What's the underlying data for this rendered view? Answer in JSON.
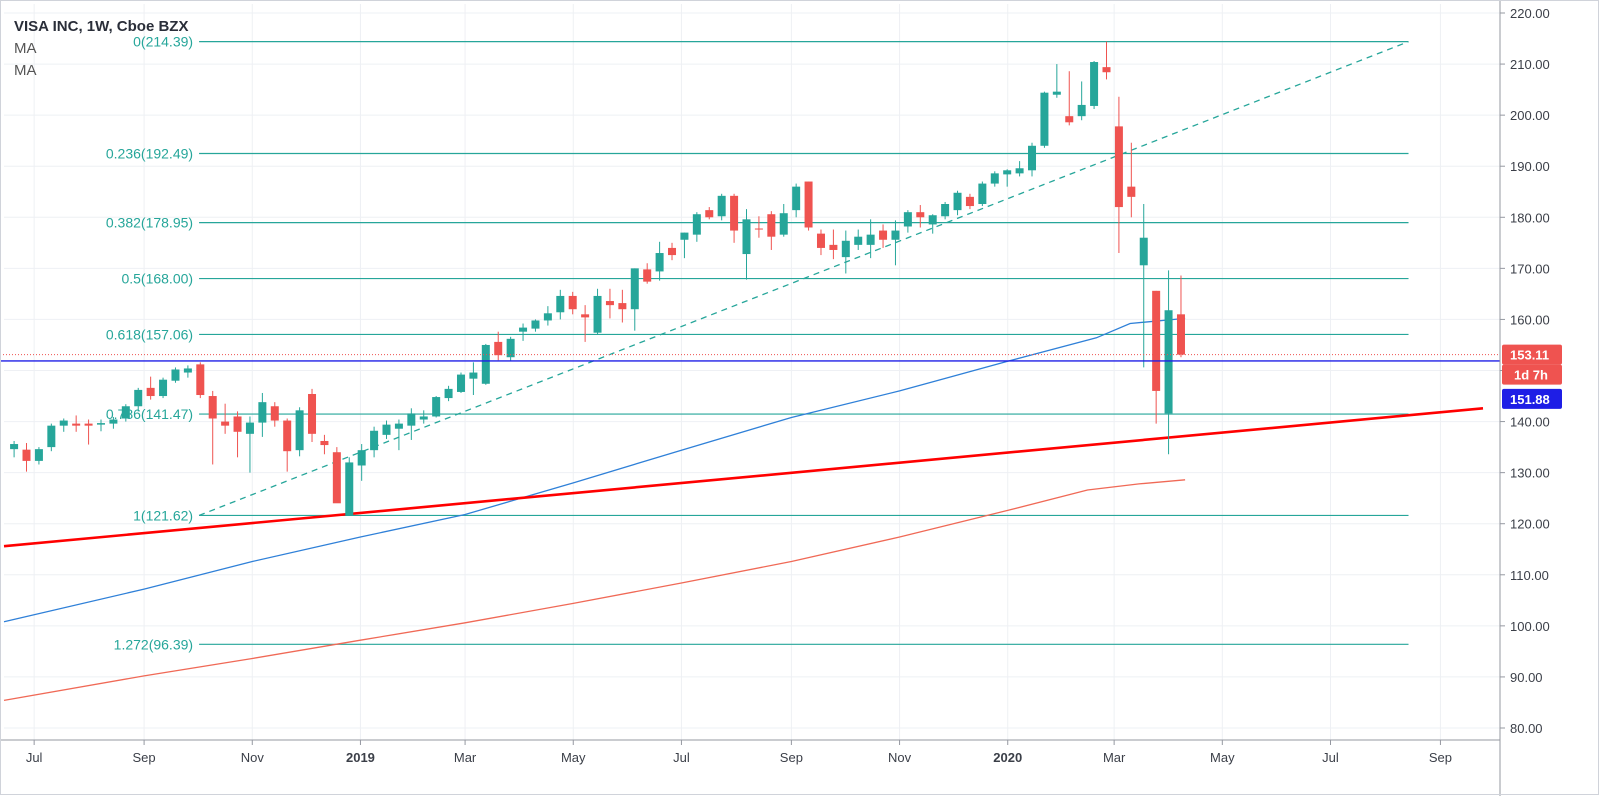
{
  "legend": {
    "title": "VISA INC, 1W, Cboe BZX",
    "ma1": "MA",
    "ma2": "MA"
  },
  "colors": {
    "up": "#26a69a",
    "down": "#ef5350",
    "fib": "#26a69a",
    "ma_fast": "#2f80d8",
    "ma_slow": "#f06956",
    "trendline": "#ff0000",
    "price_line": "#1e1ee6",
    "current_price": "#ef5350",
    "grid": "#eef0f4"
  },
  "chart_data": {
    "type": "candlestick",
    "title": "VISA INC, 1W, Cboe BZX",
    "ylim": [
      78,
      222
    ],
    "xlim": [
      "2018-06-18",
      "2020-09-25"
    ],
    "grid": true,
    "y_ticks": [
      "80.00",
      "90.00",
      "100.00",
      "110.00",
      "120.00",
      "130.00",
      "140.00",
      "150.00",
      "160.00",
      "170.00",
      "180.00",
      "190.00",
      "200.00",
      "210.00",
      "220.00"
    ],
    "x_ticks": [
      {
        "label": "Jul",
        "date": "2018-07-01",
        "bold": false
      },
      {
        "label": "Sep",
        "date": "2018-09-01",
        "bold": false
      },
      {
        "label": "Nov",
        "date": "2018-11-01",
        "bold": false
      },
      {
        "label": "2019",
        "date": "2019-01-01",
        "bold": true
      },
      {
        "label": "Mar",
        "date": "2019-03-01",
        "bold": false
      },
      {
        "label": "May",
        "date": "2019-05-01",
        "bold": false
      },
      {
        "label": "Jul",
        "date": "2019-07-01",
        "bold": false
      },
      {
        "label": "Sep",
        "date": "2019-09-01",
        "bold": false
      },
      {
        "label": "Nov",
        "date": "2019-11-01",
        "bold": false
      },
      {
        "label": "2020",
        "date": "2020-01-01",
        "bold": true
      },
      {
        "label": "Mar",
        "date": "2020-03-01",
        "bold": false
      },
      {
        "label": "May",
        "date": "2020-05-01",
        "bold": false
      },
      {
        "label": "Jul",
        "date": "2020-07-01",
        "bold": false
      },
      {
        "label": "Sep",
        "date": "2020-09-01",
        "bold": false
      }
    ],
    "candles": [
      {
        "d": "2018-06-18",
        "o": 134.6,
        "h": 136.2,
        "l": 133.0,
        "c": 135.6
      },
      {
        "d": "2018-06-25",
        "o": 134.5,
        "h": 135.8,
        "l": 130.2,
        "c": 132.3
      },
      {
        "d": "2018-07-02",
        "o": 132.3,
        "h": 135.0,
        "l": 131.6,
        "c": 134.6
      },
      {
        "d": "2018-07-09",
        "o": 135.0,
        "h": 139.6,
        "l": 134.2,
        "c": 139.2
      },
      {
        "d": "2018-07-16",
        "o": 139.2,
        "h": 140.6,
        "l": 138.0,
        "c": 140.2
      },
      {
        "d": "2018-07-23",
        "o": 139.6,
        "h": 141.2,
        "l": 138.0,
        "c": 139.2
      },
      {
        "d": "2018-07-30",
        "o": 139.6,
        "h": 140.4,
        "l": 135.5,
        "c": 139.2
      },
      {
        "d": "2018-08-06",
        "o": 139.4,
        "h": 140.4,
        "l": 138.1,
        "c": 139.7
      },
      {
        "d": "2018-08-13",
        "o": 139.6,
        "h": 140.9,
        "l": 138.6,
        "c": 140.4
      },
      {
        "d": "2018-08-20",
        "o": 140.6,
        "h": 143.4,
        "l": 140.0,
        "c": 143.0
      },
      {
        "d": "2018-08-27",
        "o": 143.0,
        "h": 146.6,
        "l": 142.0,
        "c": 146.2
      },
      {
        "d": "2018-09-03",
        "o": 146.6,
        "h": 148.8,
        "l": 144.3,
        "c": 145.0
      },
      {
        "d": "2018-09-10",
        "o": 145.0,
        "h": 148.6,
        "l": 144.6,
        "c": 148.2
      },
      {
        "d": "2018-09-17",
        "o": 148.0,
        "h": 150.6,
        "l": 147.6,
        "c": 150.2
      },
      {
        "d": "2018-09-24",
        "o": 149.6,
        "h": 151.0,
        "l": 148.6,
        "c": 150.4
      },
      {
        "d": "2018-10-01",
        "o": 151.2,
        "h": 151.6,
        "l": 144.6,
        "c": 145.2
      },
      {
        "d": "2018-10-08",
        "o": 145.0,
        "h": 146.0,
        "l": 131.6,
        "c": 140.6
      },
      {
        "d": "2018-10-15",
        "o": 140.0,
        "h": 143.5,
        "l": 137.6,
        "c": 139.2
      },
      {
        "d": "2018-10-22",
        "o": 141.0,
        "h": 142.0,
        "l": 133.0,
        "c": 138.0
      },
      {
        "d": "2018-10-29",
        "o": 137.6,
        "h": 141.0,
        "l": 130.0,
        "c": 139.8
      },
      {
        "d": "2018-11-05",
        "o": 139.8,
        "h": 145.6,
        "l": 137.0,
        "c": 143.8
      },
      {
        "d": "2018-11-12",
        "o": 143.0,
        "h": 143.8,
        "l": 139.0,
        "c": 140.2
      },
      {
        "d": "2018-11-19",
        "o": 140.2,
        "h": 140.6,
        "l": 130.2,
        "c": 134.2
      },
      {
        "d": "2018-11-26",
        "o": 134.4,
        "h": 142.8,
        "l": 133.2,
        "c": 142.2
      },
      {
        "d": "2018-12-03",
        "o": 145.4,
        "h": 146.4,
        "l": 136.0,
        "c": 137.6
      },
      {
        "d": "2018-12-10",
        "o": 136.2,
        "h": 137.4,
        "l": 133.6,
        "c": 135.4
      },
      {
        "d": "2018-12-17",
        "o": 134.0,
        "h": 135.0,
        "l": 125.0,
        "c": 124.0
      },
      {
        "d": "2018-12-24",
        "o": 121.6,
        "h": 133.0,
        "l": 121.6,
        "c": 132.0
      },
      {
        "d": "2018-12-31",
        "o": 131.4,
        "h": 135.6,
        "l": 128.4,
        "c": 134.4
      },
      {
        "d": "2019-01-07",
        "o": 134.4,
        "h": 139.0,
        "l": 133.0,
        "c": 138.2
      },
      {
        "d": "2019-01-14",
        "o": 137.4,
        "h": 140.2,
        "l": 136.6,
        "c": 139.4
      },
      {
        "d": "2019-01-21",
        "o": 138.6,
        "h": 140.4,
        "l": 134.4,
        "c": 139.6
      },
      {
        "d": "2019-01-28",
        "o": 139.2,
        "h": 142.6,
        "l": 136.4,
        "c": 141.6
      },
      {
        "d": "2019-02-04",
        "o": 140.4,
        "h": 142.2,
        "l": 139.6,
        "c": 141.0
      },
      {
        "d": "2019-02-11",
        "o": 141.0,
        "h": 145.0,
        "l": 140.8,
        "c": 144.8
      },
      {
        "d": "2019-02-18",
        "o": 144.6,
        "h": 147.0,
        "l": 144.0,
        "c": 146.4
      },
      {
        "d": "2019-02-25",
        "o": 145.8,
        "h": 149.6,
        "l": 145.6,
        "c": 149.2
      },
      {
        "d": "2019-03-04",
        "o": 148.4,
        "h": 151.6,
        "l": 145.2,
        "c": 149.6
      },
      {
        "d": "2019-03-11",
        "o": 147.4,
        "h": 155.2,
        "l": 147.2,
        "c": 155.0
      },
      {
        "d": "2019-03-18",
        "o": 155.6,
        "h": 157.6,
        "l": 152.0,
        "c": 153.0
      },
      {
        "d": "2019-03-25",
        "o": 152.6,
        "h": 156.6,
        "l": 151.8,
        "c": 156.2
      },
      {
        "d": "2019-04-01",
        "o": 157.6,
        "h": 159.2,
        "l": 155.8,
        "c": 158.4
      },
      {
        "d": "2019-04-08",
        "o": 158.2,
        "h": 160.0,
        "l": 157.6,
        "c": 159.8
      },
      {
        "d": "2019-04-15",
        "o": 159.8,
        "h": 162.6,
        "l": 158.8,
        "c": 161.2
      },
      {
        "d": "2019-04-22",
        "o": 161.4,
        "h": 165.8,
        "l": 160.0,
        "c": 164.6
      },
      {
        "d": "2019-04-29",
        "o": 164.6,
        "h": 165.4,
        "l": 161.0,
        "c": 162.0
      },
      {
        "d": "2019-05-06",
        "o": 161.0,
        "h": 162.8,
        "l": 155.6,
        "c": 160.4
      },
      {
        "d": "2019-05-13",
        "o": 157.4,
        "h": 166.0,
        "l": 157.0,
        "c": 164.6
      },
      {
        "d": "2019-05-20",
        "o": 163.6,
        "h": 166.0,
        "l": 160.2,
        "c": 162.8
      },
      {
        "d": "2019-05-27",
        "o": 163.2,
        "h": 165.8,
        "l": 159.4,
        "c": 162.0
      },
      {
        "d": "2019-06-03",
        "o": 162.0,
        "h": 170.0,
        "l": 157.8,
        "c": 170.0
      },
      {
        "d": "2019-06-10",
        "o": 169.8,
        "h": 171.0,
        "l": 167.0,
        "c": 167.4
      },
      {
        "d": "2019-06-17",
        "o": 169.4,
        "h": 175.2,
        "l": 167.6,
        "c": 173.0
      },
      {
        "d": "2019-06-24",
        "o": 174.0,
        "h": 175.0,
        "l": 171.6,
        "c": 172.6
      },
      {
        "d": "2019-07-01",
        "o": 175.6,
        "h": 177.0,
        "l": 172.0,
        "c": 177.0
      },
      {
        "d": "2019-07-08",
        "o": 176.6,
        "h": 181.0,
        "l": 175.2,
        "c": 180.6
      },
      {
        "d": "2019-07-15",
        "o": 181.4,
        "h": 182.0,
        "l": 179.6,
        "c": 180.0
      },
      {
        "d": "2019-07-22",
        "o": 180.2,
        "h": 184.6,
        "l": 179.4,
        "c": 184.2
      },
      {
        "d": "2019-07-29",
        "o": 184.2,
        "h": 184.6,
        "l": 175.0,
        "c": 177.4
      },
      {
        "d": "2019-08-05",
        "o": 172.8,
        "h": 181.6,
        "l": 167.8,
        "c": 179.6
      },
      {
        "d": "2019-08-12",
        "o": 177.8,
        "h": 180.2,
        "l": 176.0,
        "c": 177.6
      },
      {
        "d": "2019-08-19",
        "o": 180.6,
        "h": 181.2,
        "l": 173.6,
        "c": 176.2
      },
      {
        "d": "2019-08-26",
        "o": 176.6,
        "h": 182.6,
        "l": 176.2,
        "c": 180.8
      },
      {
        "d": "2019-09-02",
        "o": 181.4,
        "h": 186.6,
        "l": 180.0,
        "c": 186.0
      },
      {
        "d": "2019-09-09",
        "o": 187.0,
        "h": 187.0,
        "l": 177.4,
        "c": 178.0
      },
      {
        "d": "2019-09-16",
        "o": 176.8,
        "h": 177.6,
        "l": 172.6,
        "c": 174.0
      },
      {
        "d": "2019-09-23",
        "o": 174.6,
        "h": 177.6,
        "l": 171.8,
        "c": 173.6
      },
      {
        "d": "2019-09-30",
        "o": 172.2,
        "h": 177.4,
        "l": 169.0,
        "c": 175.4
      },
      {
        "d": "2019-10-07",
        "o": 174.6,
        "h": 177.6,
        "l": 173.6,
        "c": 176.2
      },
      {
        "d": "2019-10-14",
        "o": 174.6,
        "h": 179.6,
        "l": 172.0,
        "c": 176.6
      },
      {
        "d": "2019-10-21",
        "o": 177.4,
        "h": 178.6,
        "l": 174.0,
        "c": 175.6
      },
      {
        "d": "2019-10-28",
        "o": 175.6,
        "h": 179.4,
        "l": 170.6,
        "c": 177.4
      },
      {
        "d": "2019-11-04",
        "o": 178.2,
        "h": 181.4,
        "l": 177.0,
        "c": 181.0
      },
      {
        "d": "2019-11-11",
        "o": 181.0,
        "h": 182.4,
        "l": 178.0,
        "c": 180.0
      },
      {
        "d": "2019-11-18",
        "o": 178.6,
        "h": 180.6,
        "l": 176.8,
        "c": 180.4
      },
      {
        "d": "2019-11-25",
        "o": 180.2,
        "h": 183.0,
        "l": 179.6,
        "c": 182.6
      },
      {
        "d": "2019-12-02",
        "o": 181.4,
        "h": 185.2,
        "l": 180.4,
        "c": 184.8
      },
      {
        "d": "2019-12-09",
        "o": 184.0,
        "h": 184.6,
        "l": 181.6,
        "c": 182.2
      },
      {
        "d": "2019-12-16",
        "o": 182.6,
        "h": 187.0,
        "l": 182.2,
        "c": 186.6
      },
      {
        "d": "2019-12-23",
        "o": 186.6,
        "h": 189.0,
        "l": 186.0,
        "c": 188.6
      },
      {
        "d": "2019-12-30",
        "o": 188.4,
        "h": 189.4,
        "l": 186.0,
        "c": 189.2
      },
      {
        "d": "2020-01-06",
        "o": 188.6,
        "h": 191.0,
        "l": 188.0,
        "c": 189.6
      },
      {
        "d": "2020-01-13",
        "o": 189.2,
        "h": 194.6,
        "l": 188.0,
        "c": 194.0
      },
      {
        "d": "2020-01-20",
        "o": 194.0,
        "h": 204.6,
        "l": 193.6,
        "c": 204.4
      },
      {
        "d": "2020-01-27",
        "o": 204.0,
        "h": 210.0,
        "l": 203.4,
        "c": 204.6
      },
      {
        "d": "2020-02-03",
        "o": 199.8,
        "h": 208.6,
        "l": 198.0,
        "c": 198.6
      },
      {
        "d": "2020-02-10",
        "o": 199.8,
        "h": 206.6,
        "l": 199.0,
        "c": 202.0
      },
      {
        "d": "2020-02-17",
        "o": 201.8,
        "h": 210.6,
        "l": 201.2,
        "c": 210.4
      },
      {
        "d": "2020-02-24",
        "o": 209.4,
        "h": 214.4,
        "l": 207.0,
        "c": 208.4
      },
      {
        "d": "2020-03-02",
        "o": 197.8,
        "h": 203.6,
        "l": 173.0,
        "c": 182.0
      },
      {
        "d": "2020-03-09",
        "o": 186.0,
        "h": 194.6,
        "l": 180.0,
        "c": 184.0
      },
      {
        "d": "2020-03-16",
        "o": 170.6,
        "h": 182.6,
        "l": 150.6,
        "c": 176.0
      },
      {
        "d": "2020-03-23",
        "o": 165.6,
        "h": 165.6,
        "l": 139.6,
        "c": 146.0
      },
      {
        "d": "2020-03-30",
        "o": 141.6,
        "h": 169.6,
        "l": 133.6,
        "c": 161.8
      },
      {
        "d": "2020-04-06",
        "o": 161.0,
        "h": 168.6,
        "l": 152.6,
        "c": 153.11
      }
    ],
    "fib_levels": [
      {
        "label": "0(214.39)",
        "price": 214.39
      },
      {
        "label": "0.236(192.49)",
        "price": 192.49
      },
      {
        "label": "0.382(178.95)",
        "price": 178.95
      },
      {
        "label": "0.5(168.00)",
        "price": 168.0
      },
      {
        "label": "0.618(157.06)",
        "price": 157.06
      },
      {
        "label": "0.786(141.47)",
        "price": 141.47
      },
      {
        "label": "1(121.62)",
        "price": 121.62
      },
      {
        "label": "1.272(96.39)",
        "price": 96.39
      }
    ],
    "fib_range": {
      "start_date": "2018-10-02",
      "end_date": "2020-08-14"
    },
    "fib_trend_line": [
      {
        "d": "2018-10-02",
        "p": 121.62
      },
      {
        "d": "2020-08-14",
        "p": 214.39
      }
    ],
    "trendline": [
      {
        "d": "2018-06-14",
        "p": 115.6
      },
      {
        "d": "2020-09-25",
        "p": 142.6
      }
    ],
    "ma_fast": [
      {
        "d": "2018-06-14",
        "p": 100.8
      },
      {
        "d": "2018-09-01",
        "p": 107.2
      },
      {
        "d": "2018-11-01",
        "p": 112.6
      },
      {
        "d": "2019-01-01",
        "p": 117.4
      },
      {
        "d": "2019-03-01",
        "p": 121.8
      },
      {
        "d": "2019-05-01",
        "p": 128.0
      },
      {
        "d": "2019-07-01",
        "p": 134.4
      },
      {
        "d": "2019-09-01",
        "p": 140.8
      },
      {
        "d": "2019-11-01",
        "p": 146.0
      },
      {
        "d": "2020-01-01",
        "p": 151.8
      },
      {
        "d": "2020-02-20",
        "p": 156.4
      },
      {
        "d": "2020-03-10",
        "p": 159.2
      },
      {
        "d": "2020-04-10",
        "p": 160.2
      }
    ],
    "ma_slow": [
      {
        "d": "2018-06-14",
        "p": 85.4
      },
      {
        "d": "2018-09-01",
        "p": 90.2
      },
      {
        "d": "2018-11-01",
        "p": 93.6
      },
      {
        "d": "2019-01-01",
        "p": 97.2
      },
      {
        "d": "2019-03-01",
        "p": 100.6
      },
      {
        "d": "2019-05-01",
        "p": 104.4
      },
      {
        "d": "2019-07-01",
        "p": 108.4
      },
      {
        "d": "2019-09-01",
        "p": 112.6
      },
      {
        "d": "2019-11-01",
        "p": 117.4
      },
      {
        "d": "2020-01-01",
        "p": 122.6
      },
      {
        "d": "2020-02-15",
        "p": 126.6
      },
      {
        "d": "2020-03-15",
        "p": 127.8
      },
      {
        "d": "2020-04-10",
        "p": 128.6
      }
    ],
    "price_line": 151.88,
    "current_price": 153.11,
    "badges": {
      "current": "153.11",
      "countdown": "1d 7h",
      "line": "151.88"
    }
  }
}
